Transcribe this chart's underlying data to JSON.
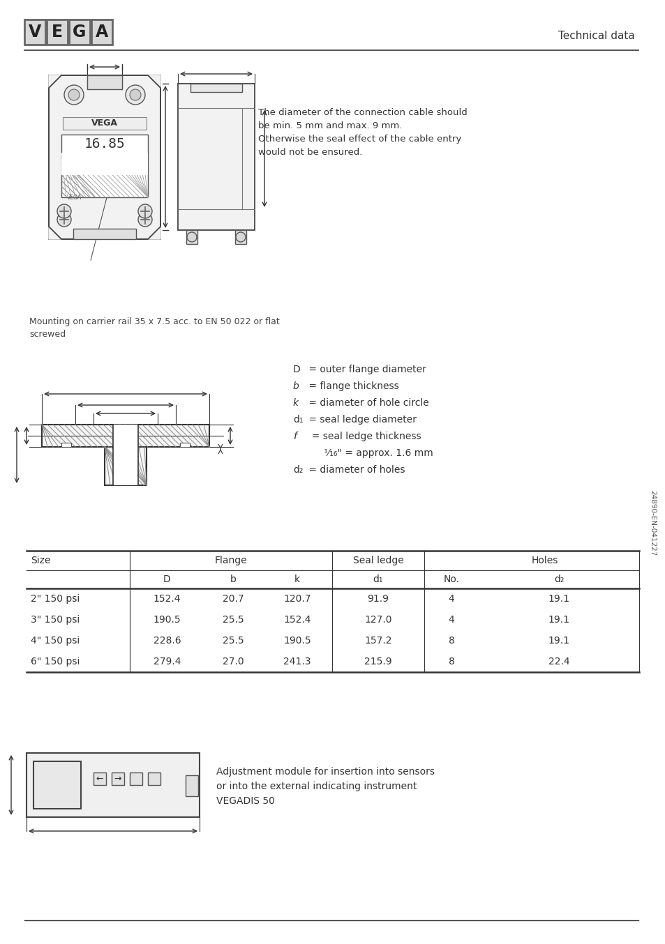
{
  "title": "Technical data",
  "bg_color": "#ffffff",
  "text_color": "#333333",
  "cable_text": "The diameter of the connection cable should\nbe min. 5 mm and max. 9 mm.\nOtherwise the seal effect of the cable entry\nwould not be ensured.",
  "mounting_text": "Mounting on carrier rail 35 x 7.5 acc. to EN 50 022 or flat\nscrewed",
  "legend_lines": [
    [
      "D",
      " = outer flange diameter"
    ],
    [
      "b",
      " = flange thickness"
    ],
    [
      "k",
      " = diameter of hole circle"
    ],
    [
      "d₁",
      " = seal ledge diameter"
    ],
    [
      "f",
      "  = seal ledge thickness"
    ],
    [
      "",
      "      ¹⁄₁₆\" = approx. 1.6 mm"
    ],
    [
      "d₂",
      " = diameter of holes"
    ]
  ],
  "table_data": [
    [
      "2\" 150 psi",
      "152.4",
      "20.7",
      "120.7",
      "91.9",
      "4",
      "19.1"
    ],
    [
      "3\" 150 psi",
      "190.5",
      "25.5",
      "152.4",
      "127.0",
      "4",
      "19.1"
    ],
    [
      "4\" 150 psi",
      "228.6",
      "25.5",
      "190.5",
      "157.2",
      "8",
      "19.1"
    ],
    [
      "6\" 150 psi",
      "279.4",
      "27.0",
      "241.3",
      "215.9",
      "8",
      "22.4"
    ]
  ],
  "adjustment_text": "Adjustment module for insertion into sensors\nor into the external indicating instrument\nVEGADIS 50",
  "doc_number": "24890-EN-041227"
}
